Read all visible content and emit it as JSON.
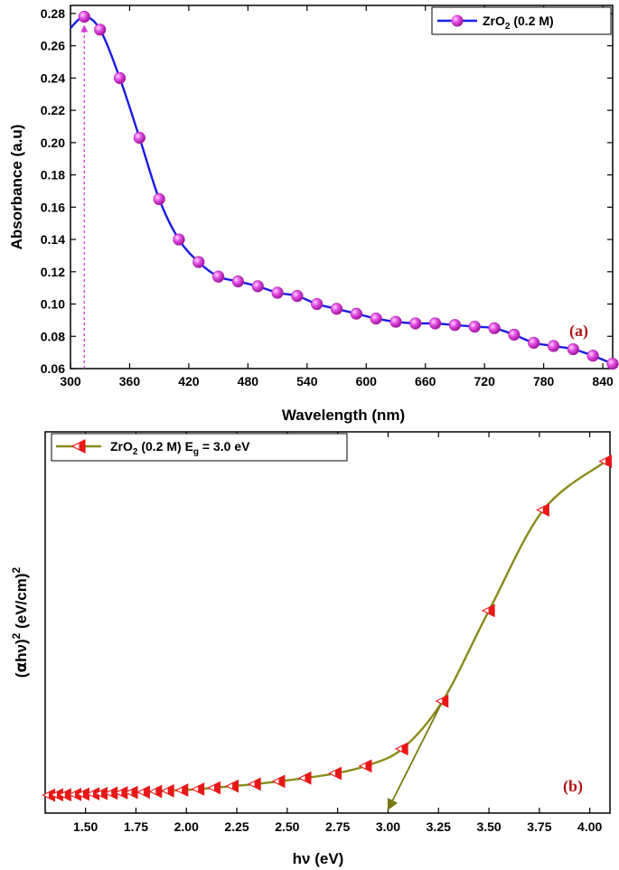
{
  "colors": {
    "a_line": "#1a1ae6",
    "a_marker": "#e040e0",
    "a_guide": "#d23cd2",
    "b_line": "#8a8a1a",
    "b_marker": "#e81818",
    "b_arrow": "#7a7a14",
    "panel_tag": "#b01515"
  },
  "chart_data": [
    {
      "type": "line",
      "panel_label": "(a)",
      "xlabel": "Wavelength (nm)",
      "ylabel": "Absorbance (a.u)",
      "xlim": [
        300,
        850
      ],
      "ylim": [
        0.06,
        0.285
      ],
      "xticks": [
        "300",
        "360",
        "420",
        "480",
        "540",
        "600",
        "660",
        "720",
        "780",
        "840"
      ],
      "yticks": [
        "0.06",
        "0.08",
        "0.10",
        "0.12",
        "0.14",
        "0.16",
        "0.18",
        "0.20",
        "0.22",
        "0.24",
        "0.26",
        "0.28"
      ],
      "legend": {
        "name": "ZrO",
        "sub": "2",
        "rest": " (0.2 M)",
        "placement": "top-right"
      },
      "annotation": {
        "type": "vertical-arrow",
        "x": 314
      },
      "series": [
        {
          "name": "ZrO2 (0.2 M)",
          "x": [
            300,
            314,
            330,
            350,
            370,
            390,
            410,
            430,
            450,
            470,
            490,
            510,
            530,
            550,
            570,
            590,
            610,
            630,
            650,
            670,
            690,
            710,
            730,
            750,
            770,
            790,
            810,
            830,
            850
          ],
          "y": [
            0.271,
            0.278,
            0.27,
            0.24,
            0.203,
            0.165,
            0.14,
            0.126,
            0.117,
            0.114,
            0.111,
            0.107,
            0.105,
            0.1,
            0.097,
            0.094,
            0.091,
            0.089,
            0.088,
            0.088,
            0.087,
            0.086,
            0.085,
            0.081,
            0.076,
            0.074,
            0.072,
            0.068,
            0.063
          ],
          "markers_x": [
            314,
            330,
            350,
            370,
            390,
            410,
            430,
            450,
            470,
            490,
            510,
            530,
            550,
            570,
            590,
            610,
            630,
            650,
            670,
            690,
            710,
            730,
            750,
            770,
            790,
            810,
            830,
            850
          ]
        }
      ]
    },
    {
      "type": "line",
      "panel_label": "(b)",
      "xlabel": "hν (eV)",
      "ylabel": "(αhν)² (eV/cm)²",
      "ylabel_parts": {
        "open": "(",
        "alpha": "α",
        "hnu": "hν",
        "close": ")",
        "exp": "2",
        "units": " (eV/cm)",
        "exp2": "2"
      },
      "xlim": [
        1.3,
        4.1
      ],
      "ylim": [
        0.0,
        1.05
      ],
      "xticks": [
        "1.50",
        "1.75",
        "2.00",
        "2.25",
        "2.50",
        "2.75",
        "3.00",
        "3.25",
        "3.50",
        "3.75",
        "4.00"
      ],
      "legend": {
        "name": "ZrO",
        "sub": "2",
        "mid": " (0.2 M) E",
        "sub2": "g",
        "rest": " = 3.0 eV",
        "placement": "top-left"
      },
      "annotation": {
        "type": "tauc-extrapolation",
        "from_x": 3.27,
        "from_y": 0.285,
        "to_x": 3.0,
        "to_y": 0.0,
        "band_gap_eV": 3.0
      },
      "series": [
        {
          "name": "ZrO2 (0.2 M) Eg = 3.0 eV",
          "x": [
            1.32,
            1.36,
            1.4,
            1.45,
            1.49,
            1.54,
            1.58,
            1.63,
            1.68,
            1.73,
            1.79,
            1.85,
            1.91,
            1.98,
            2.06,
            2.14,
            2.23,
            2.34,
            2.46,
            2.59,
            2.74,
            2.89,
            3.07,
            3.27,
            3.5,
            3.77,
            4.08
          ],
          "y": [
            0.005,
            0.006,
            0.006,
            0.007,
            0.008,
            0.009,
            0.01,
            0.011,
            0.012,
            0.013,
            0.014,
            0.016,
            0.018,
            0.02,
            0.023,
            0.027,
            0.032,
            0.038,
            0.046,
            0.056,
            0.07,
            0.092,
            0.143,
            0.285,
            0.555,
            0.855,
            1.0
          ]
        }
      ]
    }
  ]
}
